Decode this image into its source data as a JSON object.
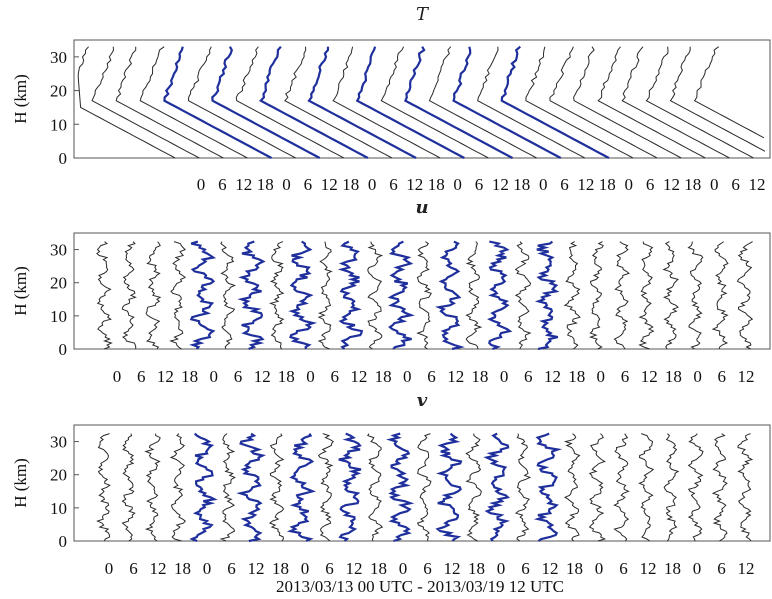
{
  "figure": {
    "xlabel": "2013/03/13 00 UTC - 2013/03/19 12 UTC",
    "colors": {
      "highlight": "#1f2f9c",
      "ink": "#2a2a2a",
      "frame": "#555555"
    }
  },
  "chart_data": [
    {
      "type": "line",
      "variable": "T",
      "title": "T",
      "ylabel": "H (km)",
      "ylim": [
        0,
        35
      ],
      "yticks": [
        0,
        10,
        20,
        30
      ],
      "xtick_labels": [
        "0",
        "6",
        "12",
        "18",
        "0",
        "6",
        "12",
        "18",
        "0",
        "6",
        "12",
        "18",
        "0",
        "6",
        "12",
        "18",
        "0",
        "6",
        "12",
        "18",
        "0",
        "6",
        "12",
        "18",
        "0",
        "6",
        "12"
      ],
      "profiles": 27,
      "highlighted_profiles": [
        4,
        6,
        8,
        10,
        12,
        14,
        16,
        18
      ],
      "grid": false,
      "tropopause_km": 17
    },
    {
      "type": "line",
      "variable": "u",
      "title": "u",
      "ylabel": "H (km)",
      "ylim": [
        0,
        35
      ],
      "yticks": [
        0,
        10,
        20,
        30
      ],
      "xtick_labels": [
        "0",
        "6",
        "12",
        "18",
        "0",
        "6",
        "12",
        "18",
        "0",
        "6",
        "12",
        "18",
        "0",
        "6",
        "12",
        "18",
        "0",
        "6",
        "12",
        "18",
        "0",
        "6",
        "12",
        "18",
        "0",
        "6",
        "12"
      ],
      "profiles": 27,
      "highlighted_profiles": [
        4,
        6,
        8,
        10,
        12,
        14,
        16,
        18
      ],
      "grid": false
    },
    {
      "type": "line",
      "variable": "v",
      "title": "v",
      "ylabel": "H (km)",
      "ylim": [
        0,
        35
      ],
      "yticks": [
        0,
        10,
        20,
        30
      ],
      "xtick_labels": [
        "0",
        "6",
        "12",
        "18",
        "0",
        "6",
        "12",
        "18",
        "0",
        "6",
        "12",
        "18",
        "0",
        "6",
        "12",
        "18",
        "0",
        "6",
        "12",
        "18",
        "0",
        "6",
        "12",
        "18",
        "0",
        "6",
        "12"
      ],
      "profiles": 27,
      "highlighted_profiles": [
        4,
        6,
        8,
        10,
        12,
        14,
        16,
        18
      ],
      "grid": false
    }
  ]
}
